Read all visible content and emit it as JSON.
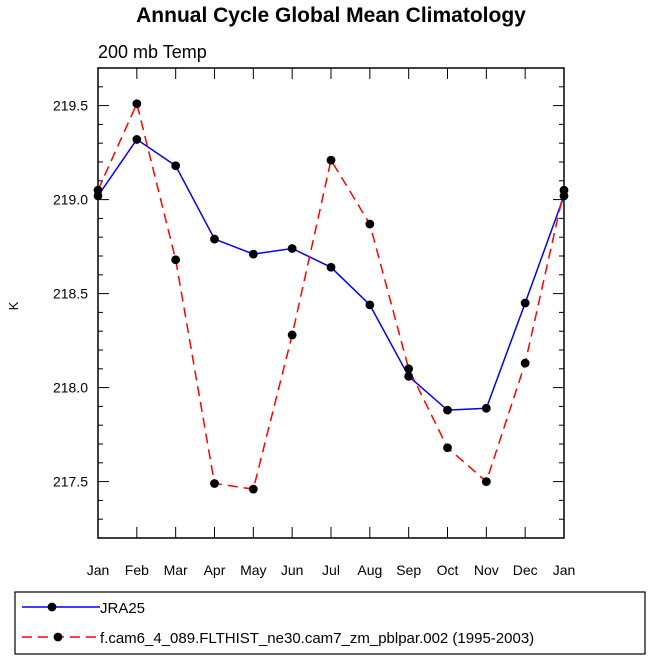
{
  "chart_data": {
    "type": "line",
    "title": "Annual Cycle Global Mean Climatology",
    "subtitle": "200 mb Temp",
    "xlabel": "",
    "ylabel": "K",
    "categories": [
      "Jan",
      "Feb",
      "Mar",
      "Apr",
      "May",
      "Jun",
      "Jul",
      "Aug",
      "Sep",
      "Oct",
      "Nov",
      "Dec",
      "Jan"
    ],
    "ylim": [
      217.2,
      219.7
    ],
    "yticks": [
      "217.5",
      "218.0",
      "218.5",
      "219.0",
      "219.5"
    ],
    "ytick_values": [
      217.5,
      218.0,
      218.5,
      219.0,
      219.5
    ],
    "grid": false,
    "legend_position": "bottom",
    "series": [
      {
        "name": "JRA25",
        "color": "#0000ff",
        "style": "solid",
        "marker": "circle",
        "values": [
          219.02,
          219.32,
          219.18,
          218.79,
          218.71,
          218.74,
          218.64,
          218.44,
          218.06,
          217.88,
          217.89,
          218.45,
          219.02
        ]
      },
      {
        "name": "f.cam6_4_089.FLTHIST_ne30.cam7_zm_pblpar.002 (1995-2003)",
        "color": "#ff0000",
        "style": "dashed",
        "marker": "circle",
        "values": [
          219.05,
          219.51,
          218.68,
          217.49,
          217.46,
          218.28,
          219.21,
          218.87,
          218.1,
          217.68,
          217.5,
          218.13,
          219.05
        ]
      }
    ]
  }
}
